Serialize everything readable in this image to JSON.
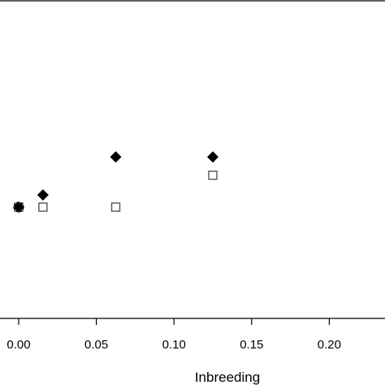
{
  "chart_data": {
    "type": "scatter",
    "xlabel": "Inbreeding",
    "xlim": [
      0.0,
      0.2
    ],
    "x_ticks": [
      "0.00",
      "0.05",
      "0.10",
      "0.15",
      "0.20"
    ],
    "x_tick_values": [
      0.0,
      0.05,
      0.1,
      0.15,
      0.2
    ],
    "series": [
      {
        "marker": "filled-diamond",
        "color": "#000000",
        "points": [
          {
            "x": 0.0,
            "y": 1.0
          },
          {
            "x": 0.015625,
            "y": 1.08
          },
          {
            "x": 0.0625,
            "y": 1.33
          },
          {
            "x": 0.125,
            "y": 1.33
          }
        ]
      },
      {
        "marker": "open-square",
        "color": "#555555",
        "points": [
          {
            "x": 0.0,
            "y": 1.0
          },
          {
            "x": 0.015625,
            "y": 1.0
          },
          {
            "x": 0.0625,
            "y": 1.0
          },
          {
            "x": 0.125,
            "y": 1.21
          }
        ]
      },
      {
        "marker": "open-circle",
        "color": "#000000",
        "points": [
          {
            "x": 0.0,
            "y": 1.0
          }
        ]
      }
    ]
  }
}
